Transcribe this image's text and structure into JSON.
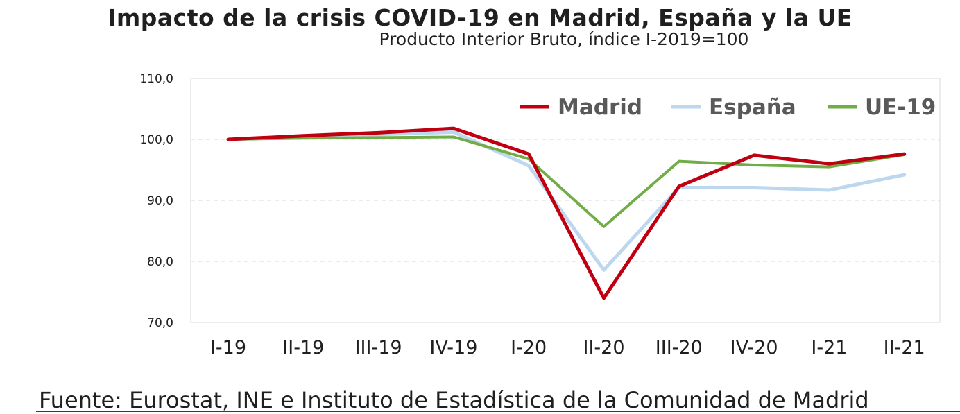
{
  "chart_data": {
    "type": "line",
    "title": "Impacto de la crisis COVID-19 en Madrid, España y la UE",
    "subtitle": "Producto Interior Bruto, índice I-2019=100",
    "categories": [
      "I-19",
      "II-19",
      "III-19",
      "IV-19",
      "I-20",
      "II-20",
      "III-20",
      "IV-20",
      "I-21",
      "II-21"
    ],
    "ylim": [
      70,
      110
    ],
    "yticks": [
      "70,0",
      "80,0",
      "90,0",
      "100,0",
      "110,0"
    ],
    "ytick_values": [
      70,
      80,
      90,
      100,
      110
    ],
    "xlabel": "",
    "ylabel": "",
    "legend_position": "top-right",
    "series": [
      {
        "name": "Madrid",
        "color": "#c00011",
        "values": [
          100.0,
          100.6,
          101.1,
          101.8,
          97.6,
          74.0,
          92.3,
          97.4,
          96.0,
          97.6
        ]
      },
      {
        "name": "España",
        "color": "#bdd7ee",
        "values": [
          100.0,
          100.4,
          100.8,
          101.2,
          95.7,
          78.6,
          92.1,
          92.1,
          91.7,
          94.2
        ]
      },
      {
        "name": "UE-19",
        "color": "#70ad47",
        "values": [
          100.0,
          100.2,
          100.3,
          100.4,
          96.8,
          85.7,
          96.4,
          95.8,
          95.5,
          97.5
        ]
      }
    ]
  },
  "footer": {
    "source": "Fuente: Eurostat, INE e Instituto de Estadística de la Comunidad de Madrid"
  }
}
